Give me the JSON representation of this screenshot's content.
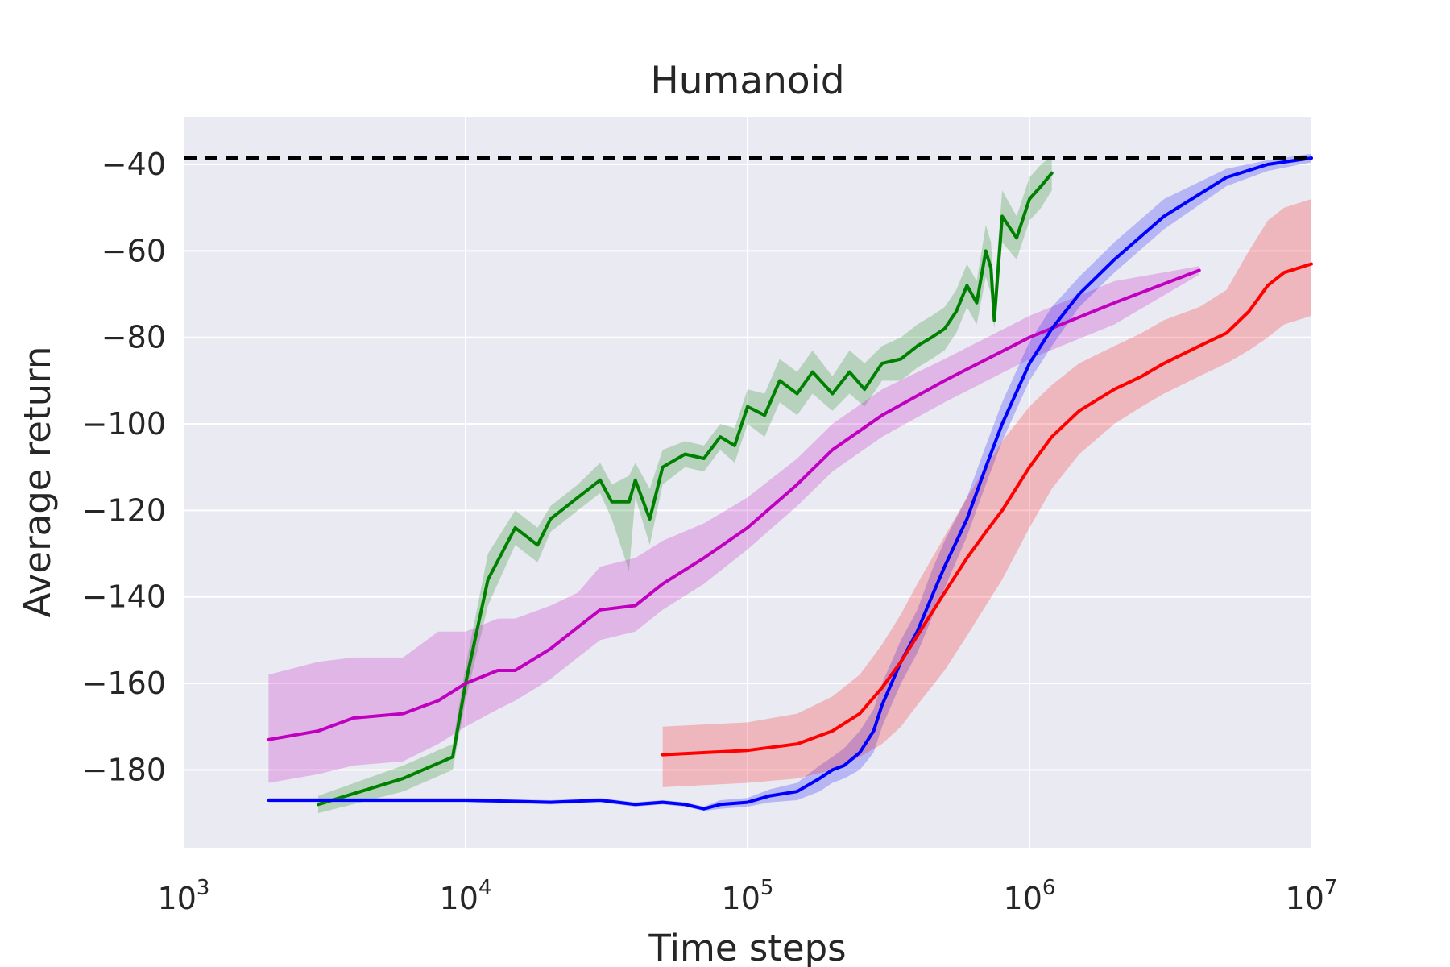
{
  "chart_data": {
    "type": "line",
    "title": "Humanoid",
    "xlabel": "Time steps",
    "ylabel": "Average return",
    "xscale": "log",
    "xlim": [
      1000,
      10000000
    ],
    "ylim": [
      -198,
      -29
    ],
    "grid": true,
    "background_color": "#eaeaf2",
    "grid_color": "#ffffff",
    "x_ticks": [
      {
        "base": "10",
        "exp": "3",
        "value": 1000
      },
      {
        "base": "10",
        "exp": "4",
        "value": 10000
      },
      {
        "base": "10",
        "exp": "5",
        "value": 100000
      },
      {
        "base": "10",
        "exp": "6",
        "value": 1000000
      },
      {
        "base": "10",
        "exp": "7",
        "value": 10000000
      }
    ],
    "y_ticks": [
      {
        "label": "−40",
        "value": -40
      },
      {
        "label": "−60",
        "value": -60
      },
      {
        "label": "−80",
        "value": -80
      },
      {
        "label": "−100",
        "value": -100
      },
      {
        "label": "−120",
        "value": -120
      },
      {
        "label": "−140",
        "value": -140
      },
      {
        "label": "−160",
        "value": -160
      },
      {
        "label": "−180",
        "value": -180
      }
    ],
    "reference_line": {
      "y": -38.5,
      "color": "#000000",
      "style": "dashed"
    },
    "series": [
      {
        "color": "#008000",
        "x": [
          3000,
          6000,
          9000,
          10000,
          12000,
          15000,
          18000,
          20000,
          25000,
          30000,
          33000,
          38000,
          40000,
          45000,
          50000,
          60000,
          70000,
          80000,
          90000,
          100000,
          115000,
          130000,
          150000,
          170000,
          200000,
          230000,
          260000,
          300000,
          350000,
          400000,
          450000,
          500000,
          550000,
          600000,
          650000,
          700000,
          730000,
          750000,
          800000,
          900000,
          1000000,
          1100000,
          1200000
        ],
        "y": [
          -188,
          -182,
          -177,
          -160,
          -136,
          -124,
          -128,
          -122,
          -117,
          -113,
          -118,
          -118,
          -113,
          -122,
          -110,
          -107,
          -108,
          -103,
          -105,
          -96,
          -98,
          -90,
          -93,
          -88,
          -93,
          -88,
          -92,
          -86,
          -85,
          -82,
          -80,
          -78,
          -74,
          -68,
          -72,
          -60,
          -64,
          -76,
          -52,
          -57,
          -48,
          -45,
          -42
        ],
        "lower": [
          -190,
          -185,
          -180,
          -164,
          -142,
          -128,
          -132,
          -125,
          -120,
          -116,
          -122,
          -134,
          -117,
          -128,
          -114,
          -110,
          -111,
          -106,
          -109,
          -100,
          -103,
          -95,
          -98,
          -93,
          -97,
          -93,
          -96,
          -90,
          -90,
          -87,
          -85,
          -83,
          -79,
          -73,
          -77,
          -66,
          -70,
          -78,
          -58,
          -62,
          -53,
          -50,
          -46
        ],
        "upper": [
          -186,
          -179,
          -174,
          -156,
          -130,
          -120,
          -124,
          -119,
          -114,
          -109,
          -114,
          -112,
          -109,
          -115,
          -106,
          -104,
          -105,
          -100,
          -101,
          -92,
          -93,
          -85,
          -88,
          -83,
          -89,
          -83,
          -86,
          -82,
          -80,
          -77,
          -75,
          -73,
          -69,
          -63,
          -67,
          -54,
          -58,
          -70,
          -46,
          -52,
          -43,
          -40,
          -38
        ]
      },
      {
        "color": "#bf00bf",
        "x": [
          2000,
          3000,
          4000,
          6000,
          8000,
          10000,
          13000,
          15000,
          20000,
          25000,
          30000,
          40000,
          50000,
          70000,
          100000,
          150000,
          200000,
          300000,
          500000,
          1000000,
          2000000,
          4000000
        ],
        "y": [
          -173,
          -171,
          -168,
          -167,
          -164,
          -160,
          -157,
          -157,
          -152,
          -147,
          -143,
          -142,
          -137,
          -131,
          -124,
          -114,
          -106,
          -98,
          -90,
          -80,
          -72,
          -64.5
        ],
        "lower": [
          -183,
          -181,
          -179,
          -178,
          -174,
          -170,
          -166,
          -164,
          -159,
          -154,
          -150,
          -148,
          -143,
          -137,
          -129,
          -119,
          -111,
          -103,
          -95,
          -85,
          -77,
          -65.5
        ],
        "upper": [
          -158,
          -155,
          -154,
          -154,
          -148,
          -148,
          -145,
          -145,
          -142,
          -139,
          -133,
          -131,
          -127,
          -123,
          -117,
          -108,
          -100,
          -92,
          -85,
          -75,
          -67,
          -63.5
        ]
      },
      {
        "color": "#0000ff",
        "x": [
          2000,
          5000,
          10000,
          20000,
          30000,
          40000,
          50000,
          60000,
          70000,
          80000,
          100000,
          120000,
          150000,
          180000,
          200000,
          220000,
          250000,
          280000,
          300000,
          350000,
          400000,
          450000,
          500000,
          600000,
          700000,
          800000,
          1000000,
          1200000,
          1500000,
          2000000,
          3000000,
          5000000,
          7000000,
          10000000
        ],
        "y": [
          -187,
          -187,
          -187,
          -187.5,
          -187,
          -188,
          -187.5,
          -188,
          -189,
          -188,
          -187.5,
          -186,
          -185,
          -182,
          -180,
          -179,
          -176,
          -171,
          -165,
          -155,
          -148,
          -140,
          -133,
          -122,
          -110,
          -100,
          -86,
          -78,
          -70,
          -62,
          -52,
          -43,
          -40,
          -38.5
        ],
        "lower": [
          -187.5,
          -187.5,
          -187.5,
          -188,
          -187.5,
          -188.5,
          -188,
          -188.5,
          -189.5,
          -189,
          -188.5,
          -187.5,
          -187,
          -185,
          -183,
          -182,
          -180,
          -176,
          -170,
          -160,
          -153,
          -145,
          -138,
          -126,
          -114,
          -104,
          -90,
          -82,
          -73,
          -65,
          -55,
          -45,
          -41.5,
          -39.5
        ],
        "upper": [
          -186.5,
          -186.5,
          -186.5,
          -187,
          -186.5,
          -187.5,
          -187,
          -187.5,
          -188.5,
          -187,
          -186.5,
          -184.5,
          -183,
          -179,
          -177,
          -175,
          -171,
          -166,
          -160,
          -150,
          -143,
          -134,
          -127,
          -117,
          -105,
          -95,
          -81,
          -73,
          -66,
          -58,
          -48,
          -41,
          -39,
          -37.5
        ]
      },
      {
        "color": "#ff0000",
        "x": [
          50000,
          100000,
          150000,
          200000,
          250000,
          300000,
          350000,
          400000,
          500000,
          600000,
          700000,
          800000,
          1000000,
          1200000,
          1500000,
          2000000,
          2500000,
          3000000,
          4000000,
          5000000,
          6000000,
          7000000,
          8000000,
          10000000
        ],
        "y": [
          -176.5,
          -175.5,
          -174,
          -171,
          -167,
          -161,
          -155,
          -149,
          -139,
          -131,
          -125,
          -120,
          -110,
          -103,
          -97,
          -92,
          -89,
          -86,
          -82,
          -79,
          -74,
          -68,
          -65,
          -63
        ],
        "lower": [
          -184,
          -183,
          -182,
          -180,
          -177,
          -174,
          -170,
          -165,
          -157,
          -149,
          -142,
          -136,
          -124,
          -115,
          -107,
          -100,
          -96,
          -93,
          -89,
          -86,
          -83,
          -80,
          -77,
          -75
        ],
        "upper": [
          -170,
          -169,
          -167,
          -163,
          -158,
          -151,
          -144,
          -137,
          -126,
          -117,
          -110,
          -104,
          -96,
          -91,
          -86,
          -82,
          -79,
          -76,
          -73,
          -69,
          -60,
          -53,
          -50,
          -48
        ]
      }
    ]
  }
}
